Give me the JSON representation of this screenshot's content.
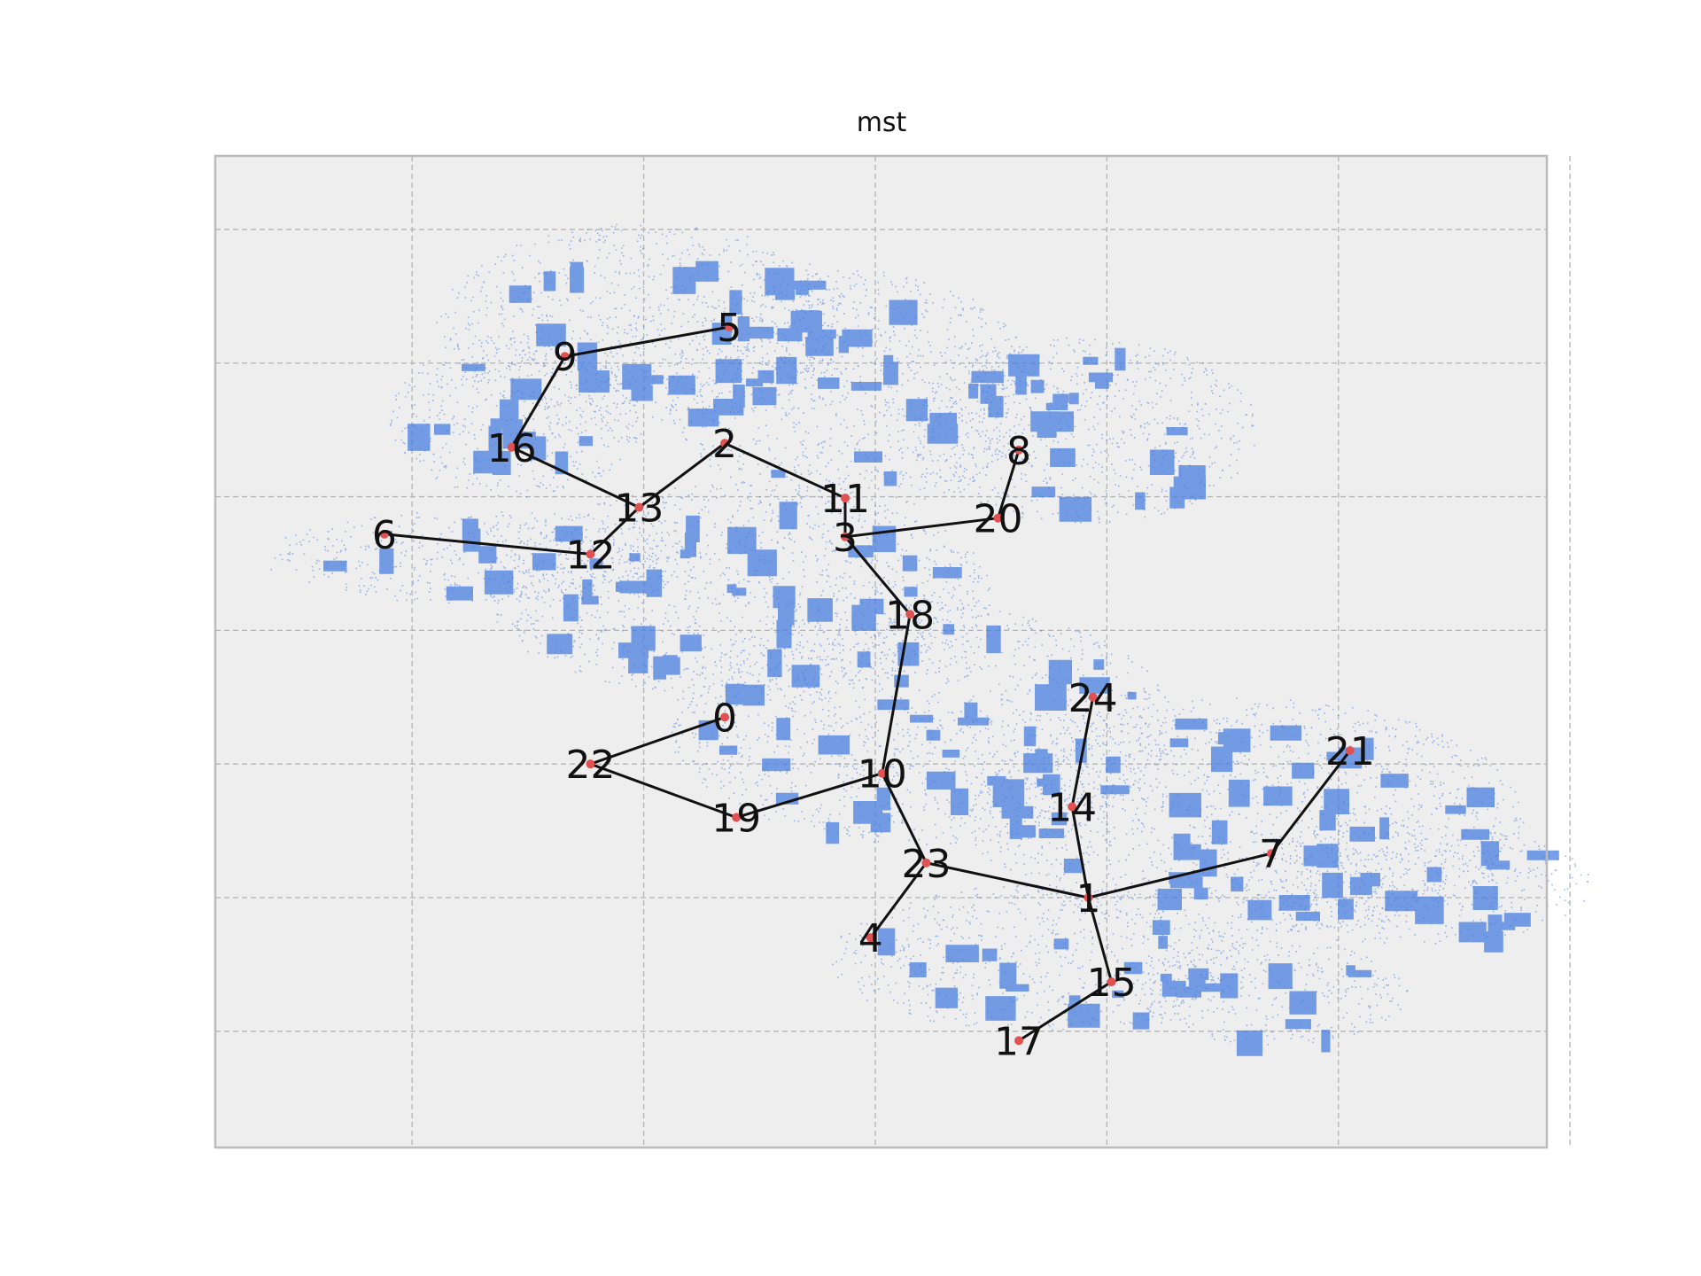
{
  "chart_data": {
    "type": "scatter",
    "title": "mst",
    "xlabel": "",
    "ylabel": "",
    "xlim": [
      -0.85,
      4.9
    ],
    "ylim": [
      -0.87,
      6.55
    ],
    "xticks": [
      0,
      1,
      2,
      3,
      4,
      5
    ],
    "yticks": [
      0,
      1,
      2,
      3,
      4,
      5,
      6
    ],
    "tick_labels_visible": false,
    "grid": true,
    "background_color": "#eeeeee",
    "frame_color": "#bbbbbb",
    "point_cloud_color": "#4a7fe0",
    "node_color": "#e05252",
    "edge_color": "#111111",
    "point_cloud_regions": [
      {
        "cx": 1.0,
        "cy": 5.3,
        "rx": 0.9,
        "ry": 0.75
      },
      {
        "cx": 0.45,
        "cy": 4.6,
        "rx": 0.55,
        "ry": 0.6
      },
      {
        "cx": 1.9,
        "cy": 4.8,
        "rx": 0.8,
        "ry": 0.9
      },
      {
        "cx": 2.9,
        "cy": 4.5,
        "rx": 0.75,
        "ry": 0.7
      },
      {
        "cx": 0.3,
        "cy": 3.55,
        "rx": 0.95,
        "ry": 0.35
      },
      {
        "cx": 1.4,
        "cy": 3.3,
        "rx": 1.1,
        "ry": 0.8
      },
      {
        "cx": 2.2,
        "cy": 2.3,
        "rx": 1.1,
        "ry": 0.9
      },
      {
        "cx": 3.6,
        "cy": 1.6,
        "rx": 1.2,
        "ry": 0.9
      },
      {
        "cx": 4.3,
        "cy": 1.1,
        "rx": 0.8,
        "ry": 0.45
      },
      {
        "cx": 2.7,
        "cy": 0.55,
        "rx": 0.9,
        "ry": 0.55
      },
      {
        "cx": 3.7,
        "cy": 0.3,
        "rx": 0.6,
        "ry": 0.4
      }
    ],
    "nodes": [
      {
        "id": 0,
        "label": "0",
        "x": 1.35,
        "y": 2.35
      },
      {
        "id": 1,
        "label": "1",
        "x": 2.92,
        "y": 1.0
      },
      {
        "id": 2,
        "label": "2",
        "x": 1.35,
        "y": 4.4
      },
      {
        "id": 3,
        "label": "3",
        "x": 1.87,
        "y": 3.7
      },
      {
        "id": 4,
        "label": "4",
        "x": 1.98,
        "y": 0.7
      },
      {
        "id": 5,
        "label": "5",
        "x": 1.37,
        "y": 5.27
      },
      {
        "id": 6,
        "label": "6",
        "x": -0.12,
        "y": 3.72
      },
      {
        "id": 7,
        "label": "7",
        "x": 3.71,
        "y": 1.33
      },
      {
        "id": 8,
        "label": "8",
        "x": 2.62,
        "y": 4.35
      },
      {
        "id": 9,
        "label": "9",
        "x": 0.66,
        "y": 5.05
      },
      {
        "id": 10,
        "label": "10",
        "x": 2.03,
        "y": 1.93
      },
      {
        "id": 11,
        "label": "11",
        "x": 1.87,
        "y": 3.99
      },
      {
        "id": 12,
        "label": "12",
        "x": 0.77,
        "y": 3.57
      },
      {
        "id": 13,
        "label": "13",
        "x": 0.98,
        "y": 3.92
      },
      {
        "id": 14,
        "label": "14",
        "x": 2.85,
        "y": 1.68
      },
      {
        "id": 15,
        "label": "15",
        "x": 3.02,
        "y": 0.37
      },
      {
        "id": 16,
        "label": "16",
        "x": 0.43,
        "y": 4.37
      },
      {
        "id": 17,
        "label": "17",
        "x": 2.62,
        "y": -0.07
      },
      {
        "id": 18,
        "label": "18",
        "x": 2.15,
        "y": 3.12
      },
      {
        "id": 19,
        "label": "19",
        "x": 1.4,
        "y": 1.6
      },
      {
        "id": 20,
        "label": "20",
        "x": 2.53,
        "y": 3.84
      },
      {
        "id": 21,
        "label": "21",
        "x": 4.05,
        "y": 2.1
      },
      {
        "id": 22,
        "label": "22",
        "x": 0.77,
        "y": 2.0
      },
      {
        "id": 23,
        "label": "23",
        "x": 2.22,
        "y": 1.26
      },
      {
        "id": 24,
        "label": "24",
        "x": 2.94,
        "y": 2.5
      }
    ],
    "edges": [
      [
        5,
        9
      ],
      [
        9,
        16
      ],
      [
        16,
        13
      ],
      [
        13,
        2
      ],
      [
        13,
        12
      ],
      [
        12,
        6
      ],
      [
        2,
        11
      ],
      [
        11,
        3
      ],
      [
        3,
        20
      ],
      [
        20,
        8
      ],
      [
        3,
        18
      ],
      [
        18,
        10
      ],
      [
        10,
        19
      ],
      [
        19,
        22
      ],
      [
        22,
        0
      ],
      [
        10,
        23
      ],
      [
        23,
        4
      ],
      [
        23,
        1
      ],
      [
        1,
        14
      ],
      [
        14,
        24
      ],
      [
        1,
        7
      ],
      [
        7,
        21
      ],
      [
        1,
        15
      ],
      [
        15,
        17
      ]
    ]
  }
}
